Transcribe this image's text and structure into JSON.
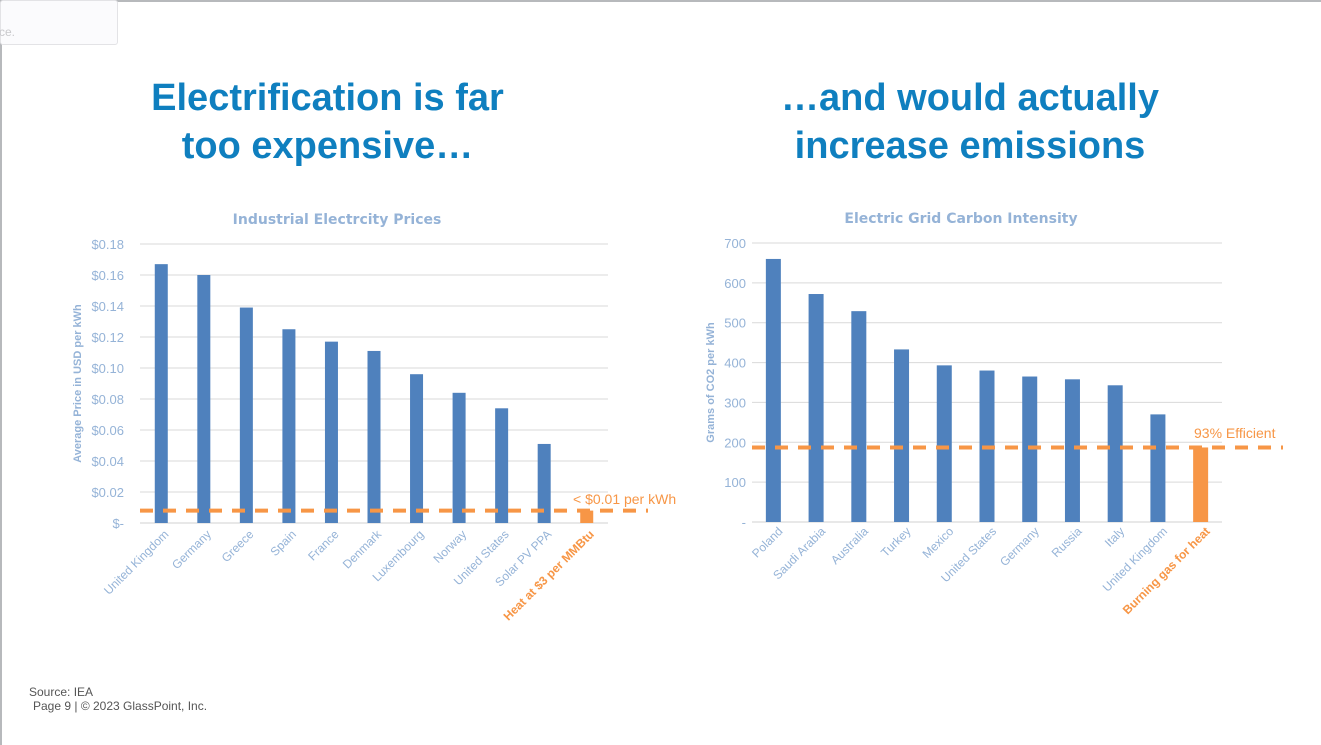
{
  "tooltip_text": "ce.",
  "headlines": {
    "left": [
      "Electrification is far",
      "too expensive…"
    ],
    "right": [
      "…and would actually",
      "increase emissions"
    ]
  },
  "footer": {
    "source": "Source: IEA",
    "page": "Page 9 | © 2023 GlassPoint, Inc."
  },
  "chart_data": [
    {
      "type": "bar",
      "title": "Industrial Electrcity Prices",
      "ylabel": "Average Price in USD per kWh",
      "ylim": [
        0,
        0.18
      ],
      "yticks": [
        0,
        0.02,
        0.04,
        0.06,
        0.08,
        0.1,
        0.12,
        0.14,
        0.16,
        0.18
      ],
      "ytick_labels": [
        "$-",
        "$0.02",
        "$0.04",
        "$0.06",
        "$0.08",
        "$0.10",
        "$0.12",
        "$0.14",
        "$0.16",
        "$0.18"
      ],
      "categories": [
        "United Kingdom",
        "Germany",
        "Greece",
        "Spain",
        "France",
        "Denmark",
        "Luxembourg",
        "Norway",
        "United States",
        "Solar PV PPA",
        "Heat at $3 per MMBtu"
      ],
      "values": [
        0.167,
        0.16,
        0.139,
        0.125,
        0.117,
        0.111,
        0.096,
        0.084,
        0.074,
        0.051,
        0.008
      ],
      "highlight_index": 10,
      "reference_line": {
        "value": 0.008,
        "label": "< $0.01 per kWh"
      },
      "grid": true,
      "colors": {
        "bar": "#4f81bd",
        "highlight": "#f79646",
        "axis_text": "#95b3d7"
      }
    },
    {
      "type": "bar",
      "title": "Electric Grid Carbon Intensity",
      "ylabel": "Grams of CO2 per kWh",
      "ylim": [
        0,
        700
      ],
      "yticks": [
        0,
        100,
        200,
        300,
        400,
        500,
        600,
        700
      ],
      "ytick_labels": [
        "-",
        "100",
        "200",
        "300",
        "400",
        "500",
        "600",
        "700"
      ],
      "categories": [
        "Poland",
        "Saudi Arabia",
        "Australia",
        "Turkey",
        "Mexico",
        "United States",
        "Germany",
        "Russia",
        "Italy",
        "United Kingdom",
        "Burning gas for heat"
      ],
      "values": [
        660,
        572,
        529,
        433,
        393,
        380,
        365,
        358,
        343,
        270,
        187
      ],
      "highlight_index": 10,
      "reference_line": {
        "value": 187,
        "label": "93% Efficient"
      },
      "grid": true,
      "colors": {
        "bar": "#4f81bd",
        "highlight": "#f79646",
        "axis_text": "#95b3d7"
      }
    }
  ]
}
